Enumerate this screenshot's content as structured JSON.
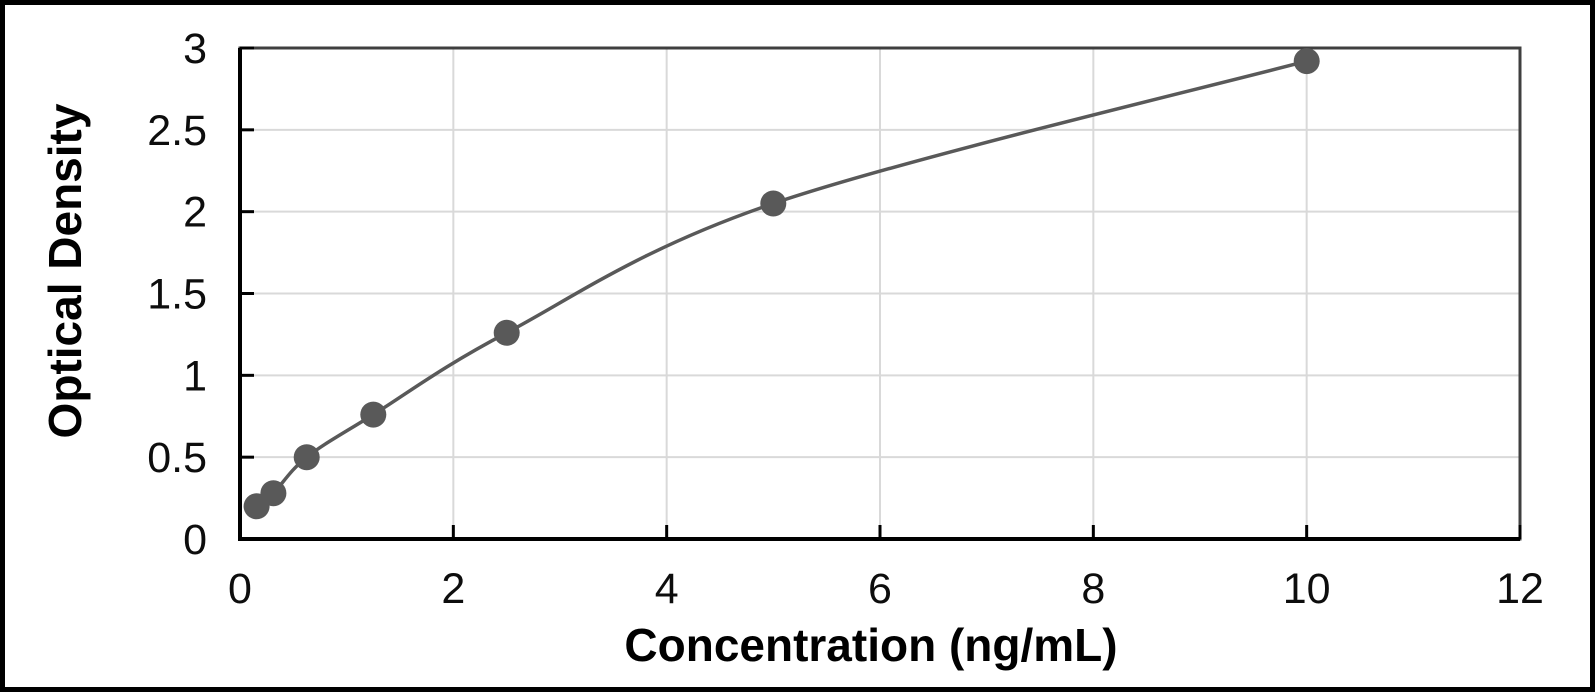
{
  "figure": {
    "background_color": "#ffffff",
    "outer_border_color": "#000000"
  },
  "chart_data": {
    "type": "line",
    "title": "",
    "xlabel": "Concentration (ng/mL)",
    "ylabel": "Optical Density",
    "x": [
      0.156,
      0.313,
      0.625,
      1.25,
      2.5,
      5,
      10
    ],
    "y": [
      0.2,
      0.28,
      0.5,
      0.76,
      1.26,
      2.05,
      2.92
    ],
    "xlim": [
      0,
      12
    ],
    "ylim": [
      0,
      3
    ],
    "x_ticks": [
      0,
      2,
      4,
      6,
      8,
      10,
      12
    ],
    "y_ticks": [
      0,
      0.5,
      1,
      1.5,
      2,
      2.5,
      3
    ],
    "grid": true,
    "legend_position": "none",
    "line_color": "#595959",
    "marker_color": "#595959",
    "marker_radius": 13,
    "gridline_color": "#d9d9d9",
    "axis_line_color": "#000000",
    "plot_border_color": "#3f3f3f",
    "tick_label_color": "#0d0d0d"
  }
}
